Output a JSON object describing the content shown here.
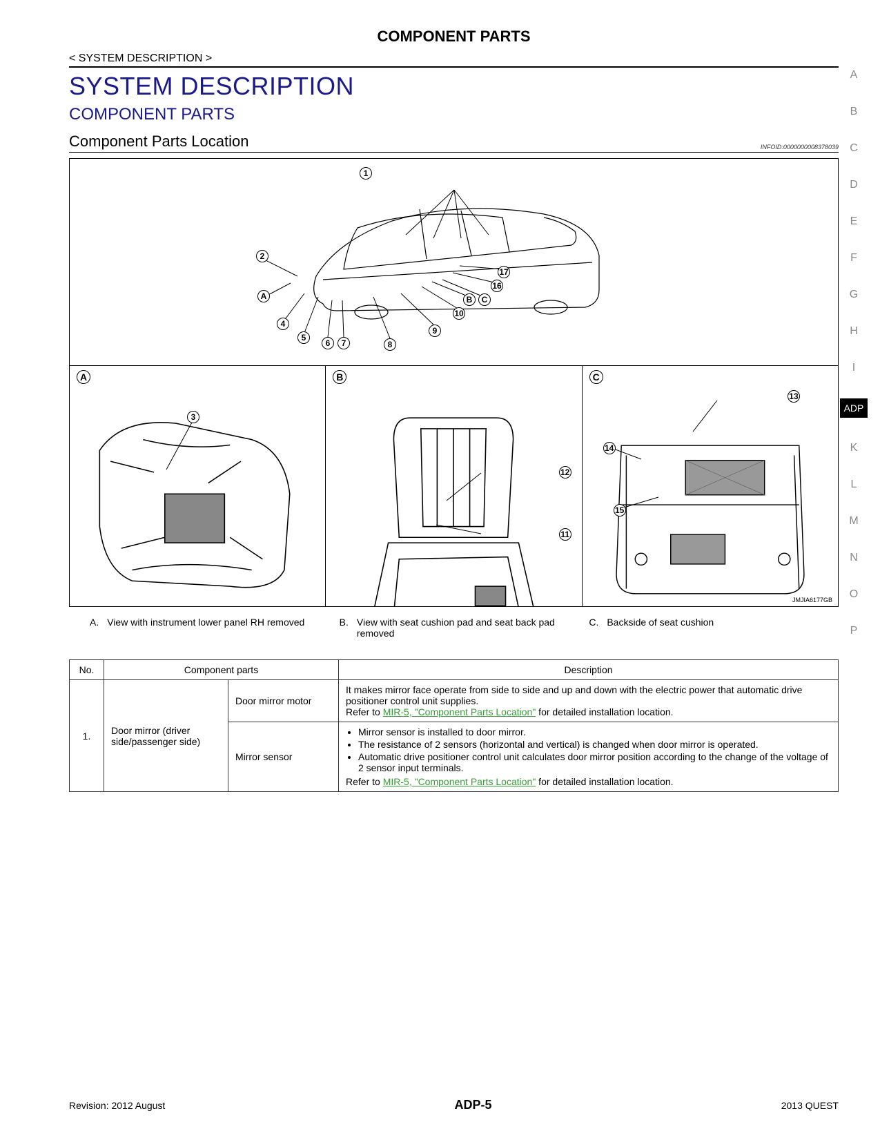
{
  "doc_title": "COMPONENT PARTS",
  "breadcrumb": "< SYSTEM DESCRIPTION >",
  "section_title": "SYSTEM DESCRIPTION",
  "subsection_title": "COMPONENT PARTS",
  "sub2_title": "Component Parts Location",
  "infoid": "INFOID:0000000008378039",
  "diagram_code": "JMJIA6177GB",
  "top_callouts": [
    "1",
    "2",
    "A",
    "4",
    "5",
    "6",
    "7",
    "8",
    "9",
    "10",
    "B",
    "C",
    "16",
    "17"
  ],
  "panel_labels": {
    "a": "A",
    "b": "B",
    "c": "C"
  },
  "panel_a_callouts": [
    "3"
  ],
  "panel_b_callouts": [
    "11",
    "12"
  ],
  "panel_c_callouts": [
    "13",
    "14",
    "15"
  ],
  "legend": [
    {
      "letter": "A.",
      "text": "View with instrument lower panel RH removed"
    },
    {
      "letter": "B.",
      "text": "View with seat cushion pad and seat back pad removed"
    },
    {
      "letter": "C.",
      "text": "Backside of seat cushion"
    }
  ],
  "table": {
    "headers": [
      "No.",
      "Component parts",
      "Description"
    ],
    "rows": [
      {
        "no": "1.",
        "group": "Door mirror (driver side/passenger side)",
        "parts": [
          {
            "name": "Door mirror motor",
            "desc_plain": "It makes mirror face operate from side to side and up and down with the electric power that automatic drive positioner control unit supplies.",
            "refer_prefix": "Refer to ",
            "refer_link": "MIR-5, \"Component Parts Location\"",
            "refer_suffix": " for detailed installation location."
          },
          {
            "name": "Mirror sensor",
            "bullets": [
              "Mirror sensor is installed to door mirror.",
              "The resistance of 2 sensors (horizontal and vertical) is changed when door mirror is operated.",
              "Automatic drive positioner control unit calculates door mirror position according to the change of the voltage of 2 sensor input terminals."
            ],
            "refer_prefix": "Refer to ",
            "refer_link": "MIR-5, \"Component Parts Location\"",
            "refer_suffix": " for detailed installation location."
          }
        ]
      }
    ]
  },
  "footer": {
    "left": "Revision: 2012 August",
    "center": "ADP-5",
    "right": "2013 QUEST"
  },
  "side_tabs": [
    "A",
    "B",
    "C",
    "D",
    "E",
    "F",
    "G",
    "H",
    "I",
    "ADP",
    "K",
    "L",
    "M",
    "N",
    "O",
    "P"
  ],
  "active_tab": "ADP",
  "colors": {
    "heading": "#1a1a8a",
    "link": "#3a9a3a",
    "tab_inactive": "#888888",
    "tab_active_bg": "#000000",
    "tab_active_fg": "#ffffff"
  }
}
